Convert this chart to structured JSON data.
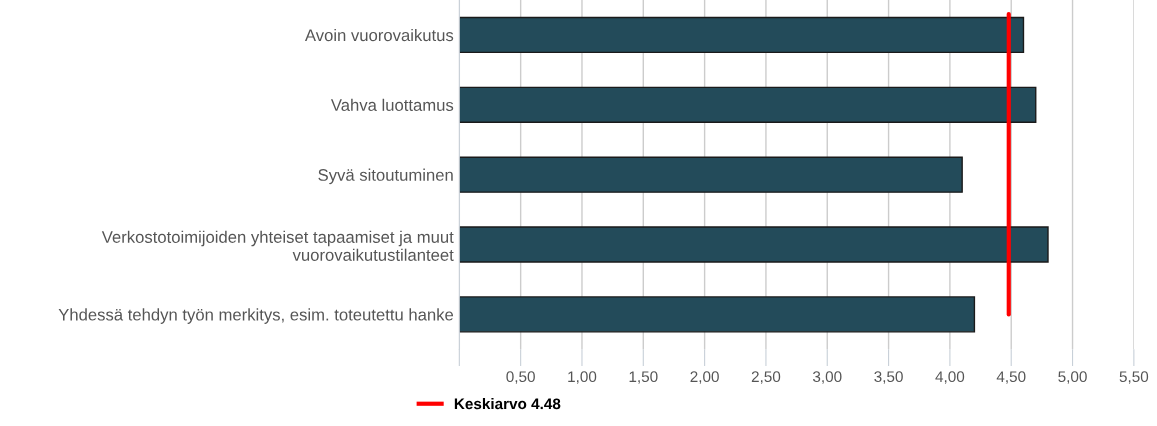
{
  "chart_data": {
    "type": "bar",
    "orientation": "horizontal",
    "categories": [
      "Avoin vuorovaikutus",
      "Vahva luottamus",
      "Syvä sitoutuminen",
      "Verkostotoimijoiden yhteiset tapaamiset ja muut\nvuorovaikutustilanteet",
      "Yhdessä tehdyn työn merkitys, esim. toteutettu hanke"
    ],
    "values": [
      4.6,
      4.7,
      4.1,
      4.8,
      4.2
    ],
    "color": "#234b5a",
    "xlim": [
      0,
      5.5
    ],
    "xticks": [
      {
        "value": 0,
        "label": null
      },
      {
        "value": 0.5,
        "label": "0,50"
      },
      {
        "value": 1,
        "label": "1,00"
      },
      {
        "value": 1.5,
        "label": "1,50"
      },
      {
        "value": 2,
        "label": "2,00"
      },
      {
        "value": 2.5,
        "label": "2,50"
      },
      {
        "value": 3,
        "label": "3,00"
      },
      {
        "value": 3.5,
        "label": "3,50"
      },
      {
        "value": 4,
        "label": "4,00"
      },
      {
        "value": 4.5,
        "label": "4,50"
      },
      {
        "value": 5,
        "label": "5,00"
      },
      {
        "value": 5.5,
        "label": "5,50"
      }
    ],
    "grid": "x",
    "legend": "bottom",
    "ref_lines": [
      {
        "axis": "x",
        "value": 4.48,
        "label": "Keskiarvo 4.48",
        "color": "#ff0000"
      }
    ]
  }
}
